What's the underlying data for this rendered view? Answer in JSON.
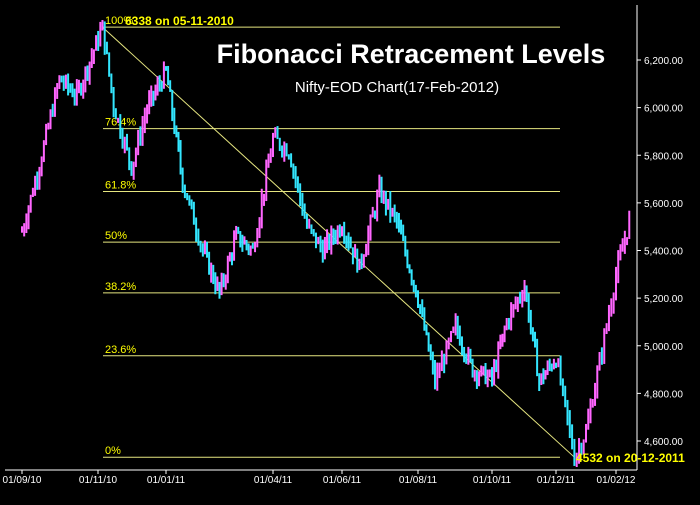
{
  "chart_data": {
    "type": "candlestick",
    "title": "Fibonacci Retracement Levels",
    "subtitle": "Nifty-EOD Chart(17-Feb-2012)",
    "x_tick_labels": [
      "01/09/10",
      "01/11/10",
      "01/01/11",
      "01/04/11",
      "01/06/11",
      "01/08/11",
      "01/10/11",
      "01/12/11",
      "01/02/12"
    ],
    "y_tick_labels": [
      "6,200.00",
      "6,000.00",
      "5,800.00",
      "5,600.00",
      "5,400.00",
      "5,200.00",
      "5,000.00",
      "4,800.00",
      "4,600.00"
    ],
    "ylim": [
      4560,
      6380
    ],
    "grid": false,
    "colors": {
      "background": "#000000",
      "up": "#ff66ff",
      "down": "#33e6ff",
      "fib_line": "#e6e680",
      "label": "#ffff00",
      "axis": "#ffffff"
    },
    "high_label": "6338 on 05-11-2010",
    "low_label": "4532 on 20-12-2011",
    "fib_levels": [
      {
        "label": "100%",
        "value": 6338
      },
      {
        "label": "76.4%",
        "value": 5912
      },
      {
        "label": "61.8%",
        "value": 5648
      },
      {
        "label": "50%",
        "value": 5435
      },
      {
        "label": "38.2%",
        "value": 5222
      },
      {
        "label": "23.6%",
        "value": 4958
      },
      {
        "label": "0%",
        "value": 4532
      }
    ],
    "series": [
      {
        "values": [
          {
            "x": "01/09/10",
            "close": 5480
          },
          {
            "x": "15/09/10",
            "close": 5760
          },
          {
            "x": "01/10/10",
            "close": 6120
          },
          {
            "x": "15/10/10",
            "close": 6050
          },
          {
            "x": "05/11/10",
            "close": 6338
          },
          {
            "x": "15/11/10",
            "close": 6010
          },
          {
            "x": "01/12/10",
            "close": 5750
          },
          {
            "x": "15/12/10",
            "close": 6000
          },
          {
            "x": "01/01/11",
            "close": 6150
          },
          {
            "x": "15/01/11",
            "close": 5690
          },
          {
            "x": "01/02/11",
            "close": 5400
          },
          {
            "x": "15/02/11",
            "close": 5220
          },
          {
            "x": "01/03/11",
            "close": 5460
          },
          {
            "x": "15/03/11",
            "close": 5400
          },
          {
            "x": "01/04/11",
            "close": 5870
          },
          {
            "x": "15/04/11",
            "close": 5820
          },
          {
            "x": "01/05/11",
            "close": 5500
          },
          {
            "x": "15/05/11",
            "close": 5400
          },
          {
            "x": "01/06/11",
            "close": 5510
          },
          {
            "x": "15/06/11",
            "close": 5330
          },
          {
            "x": "01/07/11",
            "close": 5650
          },
          {
            "x": "15/07/11",
            "close": 5520
          },
          {
            "x": "01/08/11",
            "close": 5200
          },
          {
            "x": "15/08/11",
            "close": 4850
          },
          {
            "x": "01/09/11",
            "close": 5080
          },
          {
            "x": "15/09/11",
            "close": 4900
          },
          {
            "x": "01/10/11",
            "close": 4860
          },
          {
            "x": "15/10/11",
            "close": 5100
          },
          {
            "x": "01/11/11",
            "close": 5250
          },
          {
            "x": "15/11/11",
            "close": 4850
          },
          {
            "x": "01/12/11",
            "close": 4950
          },
          {
            "x": "20/12/11",
            "close": 4532
          },
          {
            "x": "01/01/12",
            "close": 4640
          },
          {
            "x": "15/01/12",
            "close": 4930
          },
          {
            "x": "01/02/12",
            "close": 5300
          },
          {
            "x": "17/02/12",
            "close": 5560
          }
        ]
      }
    ]
  }
}
